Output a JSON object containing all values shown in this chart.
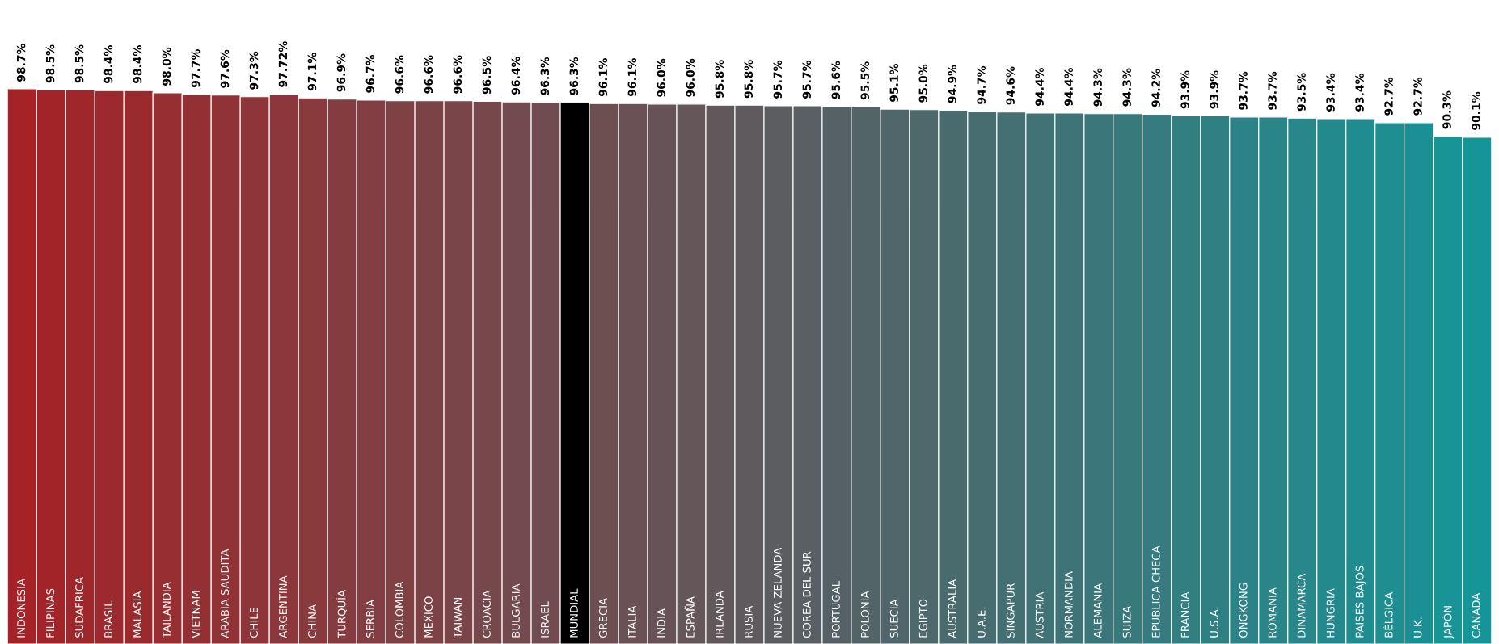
{
  "chart_data": {
    "type": "bar",
    "categories": [
      "INDONESIA",
      "FILIPINAS",
      "SUDAFRICA",
      "BRASIL",
      "MALASIA",
      "TAILANDIA",
      "VIETNAM",
      "ARABIA SAUDITA",
      "CHILE",
      "ARGENTINA",
      "CHINA",
      "TURQUÍA",
      "SERBIA",
      "COLOMBIA",
      "MEXICO",
      "TAIWAN",
      "CROACIA",
      "BULGARIA",
      "ISRAEL",
      "MUNDIAL",
      "GRECIA",
      "ITALIA",
      "INDIA",
      "ESPAÑA",
      "IRLANDA",
      "RUSIA",
      "NUEVA ZELANDA",
      "COREA DEL SUR",
      "PORTUGAL",
      "POLONIA",
      "SUECIA",
      "EGIPTO",
      "AUSTRALIA",
      "U.A.E.",
      "SINGAPUR",
      "AUSTRIA",
      "NORMANDIA",
      "ALEMANIA",
      "SUIZA",
      "EPUBLICA CHECA",
      "FRANCIA",
      "U.S.A.",
      "ONGKONG",
      "ROMANIA",
      "DINAMARCA",
      "HUNGRIA",
      "PAISES BAJOS",
      "BÉLGICA",
      "U.K.",
      "JAPÓN",
      "CANADA"
    ],
    "values": [
      98.7,
      98.5,
      98.5,
      98.4,
      98.4,
      98.0,
      97.7,
      97.6,
      97.3,
      97.72,
      97.1,
      96.9,
      96.7,
      96.6,
      96.6,
      96.6,
      96.5,
      96.4,
      96.3,
      96.3,
      96.1,
      96.1,
      96.0,
      96.0,
      95.8,
      95.8,
      95.7,
      95.7,
      95.6,
      95.5,
      95.1,
      95.0,
      94.9,
      94.7,
      94.6,
      94.4,
      94.4,
      94.3,
      94.3,
      94.2,
      93.9,
      93.9,
      93.7,
      93.7,
      93.5,
      93.4,
      93.4,
      92.7,
      92.7,
      90.3,
      90.1
    ],
    "value_labels": [
      "98.7%",
      "98.5%",
      "98.5%",
      "98.4%",
      "98.4%",
      "98.0%",
      "97.7%",
      "97.6%",
      "97.3%",
      "97.72%",
      "97.1%",
      "96.9%",
      "96.7%",
      "96.6%",
      "96.6%",
      "96.6%",
      "96.5%",
      "96.4%",
      "96.3%",
      "96.3%",
      "96.1%",
      "96.1%",
      "96.0%",
      "96.0%",
      "95.8%",
      "95.8%",
      "95.7%",
      "95.7%",
      "95.6%",
      "95.5%",
      "95.1%",
      "95.0%",
      "94.9%",
      "94.7%",
      "94.6%",
      "94.4%",
      "94.4%",
      "94.3%",
      "94.3%",
      "94.2%",
      "93.9%",
      "93.9%",
      "93.7%",
      "93.7%",
      "93.5%",
      "93.4%",
      "93.4%",
      "92.7%",
      "92.7%",
      "90.3%",
      "90.1%"
    ],
    "colors": [
      "#a52226",
      "#a22428",
      "#9f272b",
      "#9c292d",
      "#992b2f",
      "#962e32",
      "#933034",
      "#903236",
      "#8d3539",
      "#8b373b",
      "#883a3d",
      "#853c40",
      "#823e42",
      "#7f4144",
      "#7c4347",
      "#794549",
      "#76484b",
      "#734a4e",
      "#704c50",
      "#000000",
      "#6d4f52",
      "#6a5155",
      "#675357",
      "#645659",
      "#61585c",
      "#5e5a5e",
      "#5c5d60",
      "#595f63",
      "#566165",
      "#536467",
      "#50666a",
      "#4d696c",
      "#4a6b6e",
      "#476d71",
      "#447073",
      "#417275",
      "#3e7478",
      "#3b777a",
      "#38797c",
      "#357b7f",
      "#327e81",
      "#2f8083",
      "#2c8286",
      "#298588",
      "#27878a",
      "#24898d",
      "#218c8f",
      "#1e8e91",
      "#1b9094",
      "#189396",
      "#159598"
    ],
    "legend": false
  }
}
